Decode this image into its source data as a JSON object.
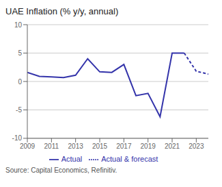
{
  "chart_data": {
    "type": "line",
    "title": "UAE Inflation (% y/y, annual)",
    "annotations": [
      "Source: Capital Economics, Refinitiv."
    ],
    "x": [
      2009,
      2010,
      2011,
      2012,
      2013,
      2014,
      2015,
      2016,
      2017,
      2018,
      2019,
      2020,
      2021,
      2022,
      2023,
      2024
    ],
    "series": [
      {
        "name": "Actual",
        "color": "#3333aa",
        "line_style": "solid",
        "values": [
          1.6,
          0.9,
          0.8,
          0.7,
          1.1,
          4.0,
          1.7,
          1.6,
          3.0,
          -2.5,
          -2.1,
          -6.2,
          5.0,
          5.0,
          null,
          null
        ]
      },
      {
        "name": "Actual & forecast",
        "color": "#3333aa",
        "line_style": "dashed",
        "values": [
          null,
          null,
          null,
          null,
          null,
          null,
          null,
          null,
          null,
          null,
          null,
          null,
          null,
          5.0,
          1.8,
          1.3
        ]
      }
    ],
    "xlim": [
      2009,
      2024
    ],
    "xticks": [
      2009,
      2011,
      2013,
      2015,
      2017,
      2019,
      2021,
      2023
    ],
    "ylim": [
      -10,
      10
    ],
    "yticks": [
      -10,
      -5,
      0,
      5,
      10
    ],
    "grid": "y",
    "legend": "bottom"
  }
}
